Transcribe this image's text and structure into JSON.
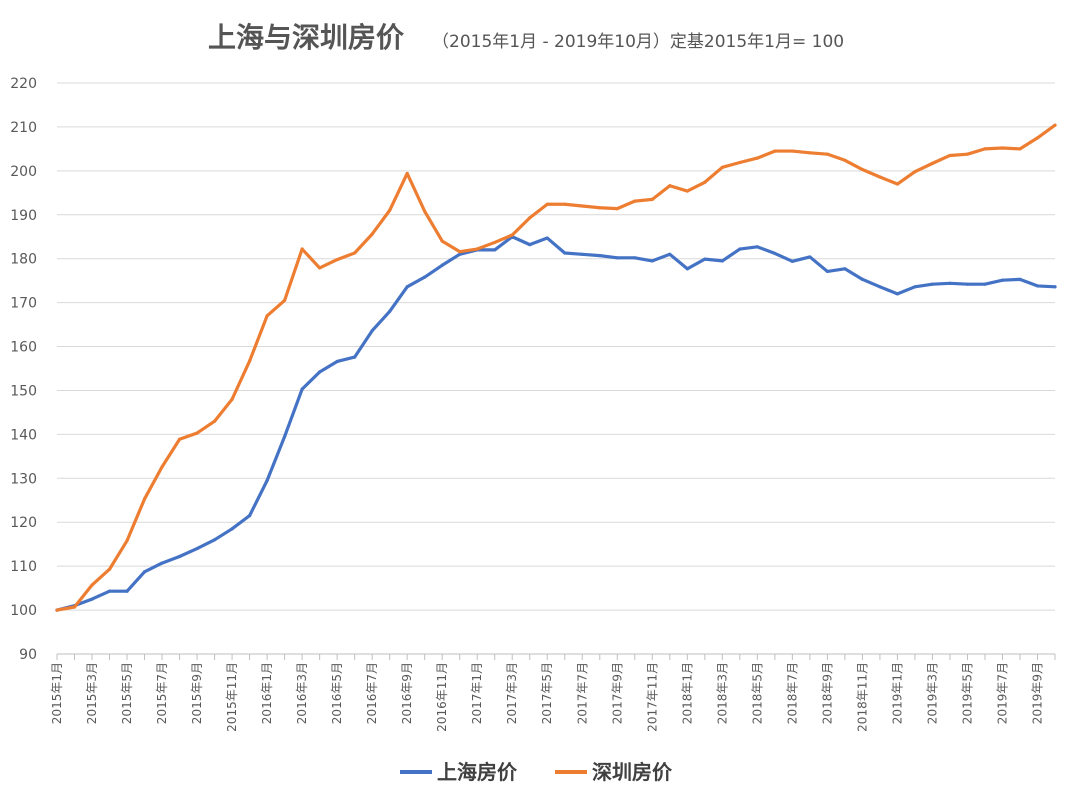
{
  "chart_data": {
    "type": "line",
    "title": "上海与深圳房价",
    "subtitle": "（2015年1月 - 2019年10月）定基2015年1月= 100",
    "ylim": [
      90,
      220
    ],
    "yticks": [
      90,
      100,
      110,
      120,
      130,
      140,
      150,
      160,
      170,
      180,
      190,
      200,
      210,
      220
    ],
    "grid": true,
    "legend_position": "bottom",
    "x": [
      "2015年1月",
      "2015年2月",
      "2015年3月",
      "2015年4月",
      "2015年5月",
      "2015年6月",
      "2015年7月",
      "2015年8月",
      "2015年9月",
      "2015年10月",
      "2015年11月",
      "2015年12月",
      "2016年1月",
      "2016年2月",
      "2016年3月",
      "2016年4月",
      "2016年5月",
      "2016年6月",
      "2016年7月",
      "2016年8月",
      "2016年9月",
      "2016年10月",
      "2016年11月",
      "2016年12月",
      "2017年1月",
      "2017年2月",
      "2017年3月",
      "2017年4月",
      "2017年5月",
      "2017年6月",
      "2017年7月",
      "2017年8月",
      "2017年9月",
      "2017年10月",
      "2017年11月",
      "2017年12月",
      "2018年1月",
      "2018年2月",
      "2018年3月",
      "2018年4月",
      "2018年5月",
      "2018年6月",
      "2018年7月",
      "2018年8月",
      "2018年9月",
      "2018年10月",
      "2018年11月",
      "2018年12月",
      "2019年1月",
      "2019年2月",
      "2019年3月",
      "2019年4月",
      "2019年5月",
      "2019年6月",
      "2019年7月",
      "2019年8月",
      "2019年9月",
      "2019年10月"
    ],
    "xtick_labels": [
      "2015年1月",
      "2015年3月",
      "2015年5月",
      "2015年7月",
      "2015年9月",
      "2015年11月",
      "2016年1月",
      "2016年3月",
      "2016年5月",
      "2016年7月",
      "2016年9月",
      "2016年11月",
      "2017年1月",
      "2017年3月",
      "2017年5月",
      "2017年7月",
      "2017年9月",
      "2017年11月",
      "2018年1月",
      "2018年3月",
      "2018年5月",
      "2018年7月",
      "2018年9月",
      "2018年11月",
      "2019年1月",
      "2019年3月",
      "2019年5月",
      "2019年7月",
      "2019年9月"
    ],
    "series": [
      {
        "name": "上海房价",
        "color": "#4472c4",
        "values": [
          100,
          101,
          102.5,
          104.3,
          104.3,
          108.7,
          110.7,
          112.2,
          114,
          116,
          118.5,
          121.5,
          129.5,
          139.5,
          150.3,
          154.2,
          156.6,
          157.6,
          163.6,
          168,
          173.6,
          175.8,
          178.5,
          181,
          182,
          182,
          185,
          183.2,
          184.7,
          181.3,
          181,
          180.7,
          180.2,
          180.2,
          179.5,
          181,
          177.7,
          179.9,
          179.5,
          182.2,
          182.7,
          181.2,
          179.4,
          180.4,
          177.1,
          177.7,
          175.3,
          173.6,
          172,
          173.6,
          174.2,
          174.4,
          174.2,
          174.2,
          175.1,
          175.3,
          173.8,
          173.6
        ]
      },
      {
        "name": "深圳房价",
        "color": "#ed7d31",
        "values": [
          100,
          100.7,
          105.7,
          109.3,
          115.8,
          125.3,
          132.6,
          138.9,
          140.3,
          143,
          148,
          156.7,
          167,
          170.5,
          182.2,
          177.9,
          179.8,
          181.3,
          185.6,
          191,
          199.4,
          190.8,
          184,
          181.6,
          182.2,
          183.7,
          185.4,
          189.3,
          192.4,
          192.4,
          192,
          191.6,
          191.4,
          193.1,
          193.5,
          196.6,
          195.4,
          197.4,
          200.8,
          201.9,
          202.9,
          204.5,
          204.5,
          204.1,
          203.8,
          202.4,
          200.3,
          198.6,
          197,
          199.8,
          201.7,
          203.5,
          203.8,
          205,
          205.2,
          205,
          207.5,
          210.4
        ]
      }
    ]
  }
}
